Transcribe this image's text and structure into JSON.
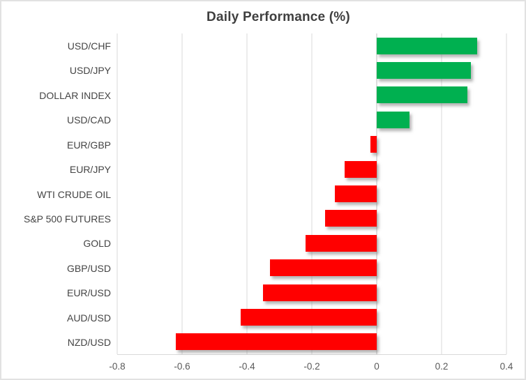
{
  "chart_data": {
    "type": "bar",
    "orientation": "horizontal",
    "title": "Daily Performance (%)",
    "categories": [
      "USD/CHF",
      "USD/JPY",
      "DOLLAR INDEX",
      "USD/CAD",
      "EUR/GBP",
      "EUR/JPY",
      "WTI CRUDE OIL",
      "S&P 500 FUTURES",
      "GOLD",
      "GBP/USD",
      "EUR/USD",
      "AUD/USD",
      "NZD/USD"
    ],
    "values": [
      0.31,
      0.29,
      0.28,
      0.1,
      -0.02,
      -0.1,
      -0.13,
      -0.16,
      -0.22,
      -0.33,
      -0.35,
      -0.42,
      -0.62
    ],
    "xlim": [
      -0.8,
      0.4
    ],
    "xticks": [
      -0.8,
      -0.6,
      -0.4,
      -0.2,
      0,
      0.2,
      0.4
    ],
    "xtick_labels": [
      "-0.8",
      "-0.6",
      "-0.4",
      "-0.2",
      "0",
      "0.2",
      "0.4"
    ],
    "grid": true,
    "legend": "none",
    "xlabel": "",
    "ylabel": "",
    "positive_color": "#00B050",
    "negative_color": "#FF0000",
    "gridline_color": "#D9D9D9",
    "zero_line_color": "#BFBFBF",
    "title_color": "#3F3F3F",
    "tick_color": "#595959",
    "category_label_color": "#444444",
    "chart_border_color": "#E2E2E2",
    "background_color": "#FFFFFF"
  }
}
